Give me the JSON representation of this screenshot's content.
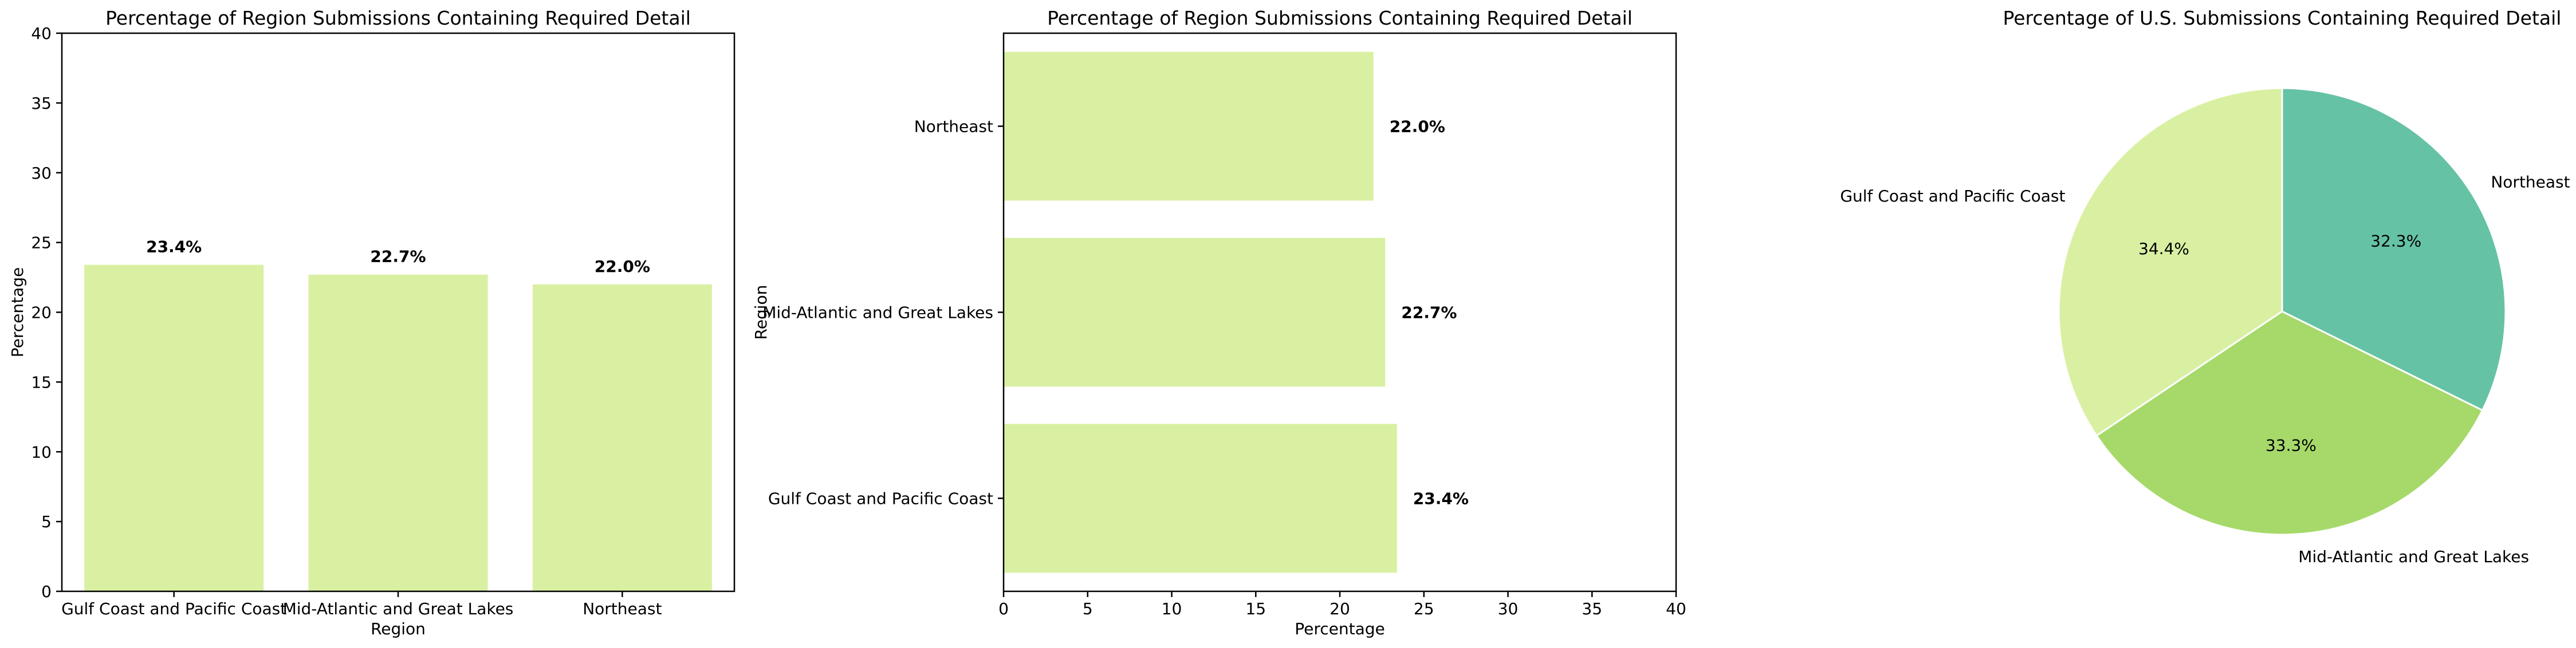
{
  "chart_data": [
    {
      "type": "bar",
      "orientation": "vertical",
      "title": "Percentage of Region Submissions Containing Required Detail",
      "xlabel": "Region",
      "ylabel": "Percentage",
      "categories": [
        "Gulf Coast and Pacific Coast",
        "Mid-Atlantic and Great Lakes",
        "Northeast"
      ],
      "values": [
        23.4,
        22.7,
        22.0
      ],
      "data_labels": [
        "23.4%",
        "22.7%",
        "22.0%"
      ],
      "ylim": [
        0,
        40
      ],
      "yticks": [
        0,
        5,
        10,
        15,
        20,
        25,
        30,
        35,
        40
      ],
      "grid": false,
      "bar_color": "#d9f0a3"
    },
    {
      "type": "bar",
      "orientation": "horizontal",
      "title": "Percentage of Region Submissions Containing Required Detail",
      "xlabel": "Percentage",
      "ylabel": "Region",
      "categories": [
        "Gulf Coast and Pacific Coast",
        "Mid-Atlantic and Great Lakes",
        "Northeast"
      ],
      "values": [
        23.4,
        22.7,
        22.0
      ],
      "data_labels": [
        "23.4%",
        "22.7%",
        "22.0%"
      ],
      "xlim": [
        0,
        40
      ],
      "xticks": [
        0,
        5,
        10,
        15,
        20,
        25,
        30,
        35,
        40
      ],
      "grid": false,
      "bar_color": "#d9f0a3"
    },
    {
      "type": "pie",
      "title": "Percentage of U.S. Submissions Containing Required Detail",
      "labels": [
        "Gulf Coast and Pacific Coast",
        "Mid-Atlantic and Great Lakes",
        "Northeast"
      ],
      "values": [
        34.4,
        33.3,
        32.3
      ],
      "pct_labels": [
        "34.4%",
        "33.3%",
        "32.3%"
      ],
      "colors": [
        "#d9f0a3",
        "#a6d96a",
        "#66c2a5"
      ],
      "start_angle": 90,
      "direction": "counterclockwise"
    }
  ]
}
